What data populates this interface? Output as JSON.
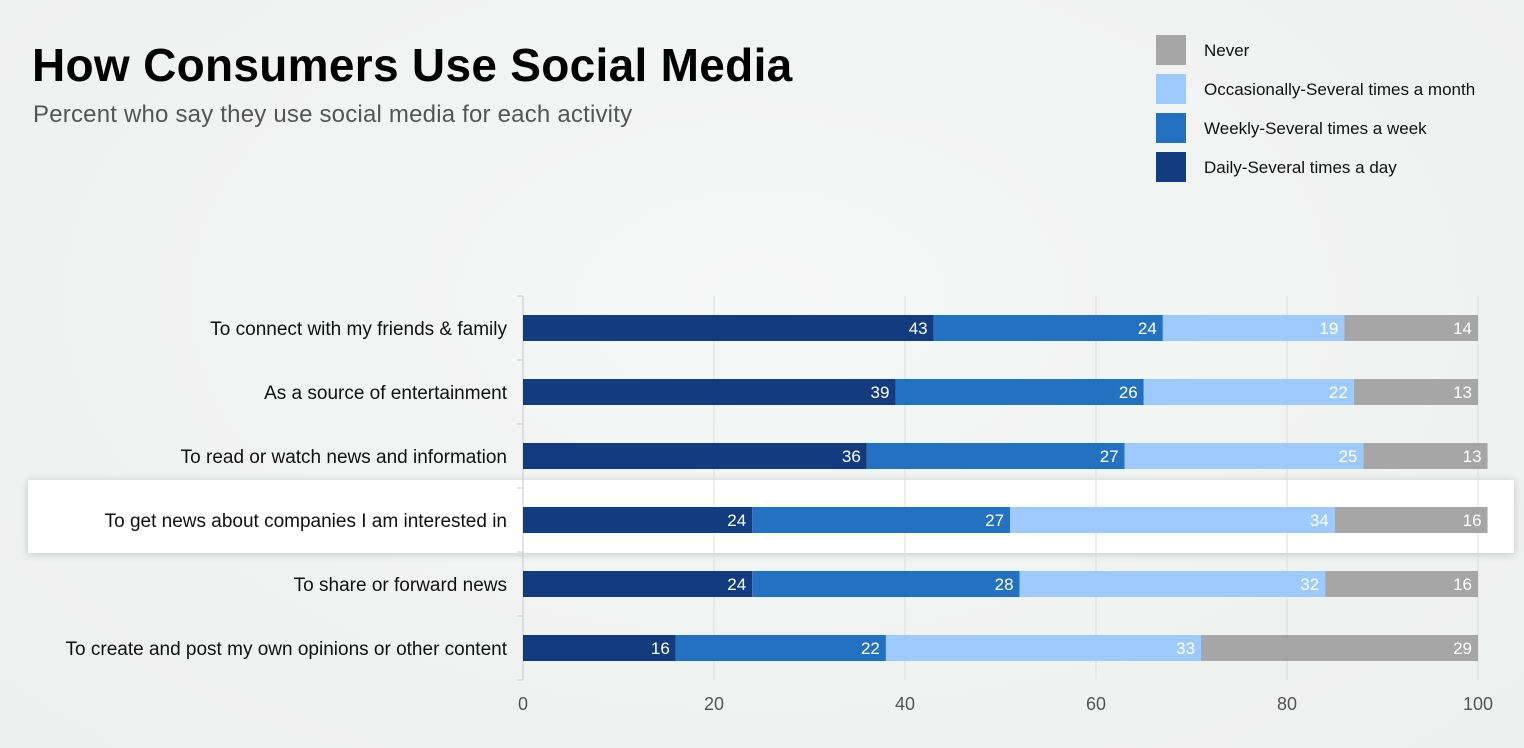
{
  "chart_data": {
    "type": "bar",
    "orientation": "horizontal",
    "stacked": true,
    "title": "How Consumers Use Social Media",
    "subtitle": "Percent who say they use social media for each activity",
    "categories": [
      "To connect with my friends & family",
      "As a source of entertainment",
      "To read or watch news and information",
      "To get news about companies I am interested in",
      "To share or forward news",
      "To create and post my own opinions or other content"
    ],
    "highlighted_category": "To get news about companies I am interested in",
    "series": [
      {
        "name": "Daily-Several times a day",
        "color": "#123c7e",
        "values": [
          43,
          39,
          36,
          24,
          24,
          16
        ]
      },
      {
        "name": "Weekly-Several times a week",
        "color": "#2470c1",
        "values": [
          24,
          26,
          27,
          27,
          28,
          22
        ]
      },
      {
        "name": "Occasionally-Several times a month",
        "color": "#9fcaff",
        "values": [
          19,
          22,
          25,
          34,
          32,
          33
        ]
      },
      {
        "name": "Never",
        "color": "#a6a6a6",
        "values": [
          14,
          13,
          13,
          16,
          16,
          29
        ]
      }
    ],
    "legend_order": [
      "Never",
      "Occasionally-Several times a month",
      "Weekly-Several times a week",
      "Daily-Several times a day"
    ],
    "legend_position": "top-right",
    "xlim": [
      0,
      100
    ],
    "xticks": [
      0,
      20,
      40,
      60,
      80,
      100
    ],
    "xlabel": "",
    "ylabel": "",
    "grid": true
  }
}
